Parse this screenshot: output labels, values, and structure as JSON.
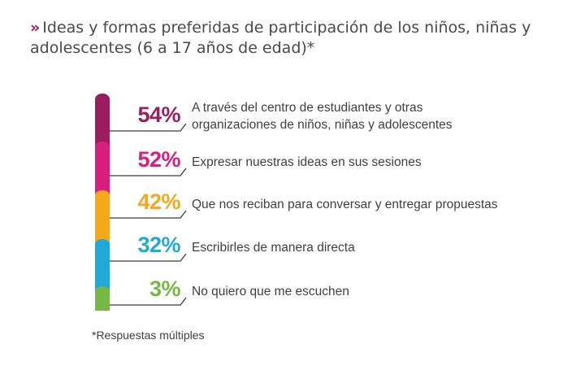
{
  "title": "Ideas y formas preferidas de participación de los niños, niñas y adolescentes (6 a 17 años de edad)*",
  "title_marker": "»",
  "footnote": "*Respuestas múltiples",
  "chart_data": {
    "type": "bar",
    "categories": [
      "A través del centro de estudiantes y otras organizaciones de niños, niñas y adolescentes",
      "Expresar nuestras ideas en sus sesiones",
      "Que nos reciban para conversar y entregar propuestas",
      "Escribirles de manera directa",
      "No quiero que me escuchen"
    ],
    "values": [
      54,
      52,
      42,
      32,
      3
    ],
    "value_labels": [
      "54%",
      "52%",
      "42%",
      "32%",
      "3%"
    ],
    "colors": [
      "#9b1c5f",
      "#d91f7e",
      "#f6a81b",
      "#1fa8d8",
      "#75b843"
    ],
    "unit": "%"
  }
}
